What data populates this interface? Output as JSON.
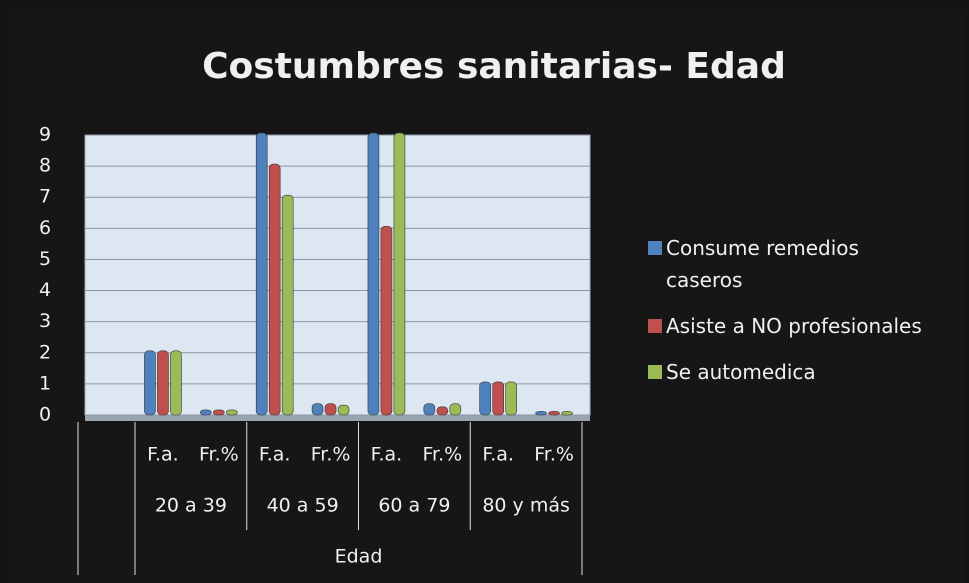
{
  "chart_data": {
    "type": "bar",
    "title": "Costumbres sanitarias- Edad",
    "x_label": "Edad",
    "groups": [
      "20 a 39",
      "40 a 59",
      "60 a 79",
      "80 y más"
    ],
    "categories": [
      "F.a.",
      "Fr.%",
      "F.a.",
      "Fr.%",
      "F.a.",
      "Fr.%",
      "F.a.",
      "Fr.%"
    ],
    "series": [
      {
        "name": "Consume remedios caseros",
        "color": "#4f81bd",
        "values": [
          2,
          0.1,
          9,
          0.3,
          9,
          0.3,
          1,
          0.05
        ]
      },
      {
        "name": "Asiste a NO profesionales",
        "color": "#c0504d",
        "values": [
          2,
          0.1,
          8,
          0.3,
          6,
          0.2,
          1,
          0.05
        ]
      },
      {
        "name": "Se automedica",
        "color": "#9bbb59",
        "values": [
          2,
          0.1,
          7,
          0.25,
          9,
          0.3,
          1,
          0.05
        ]
      }
    ],
    "ylim": [
      0,
      9
    ],
    "yticks": [
      0,
      1,
      2,
      3,
      4,
      5,
      6,
      7,
      8,
      9
    ],
    "grid": true,
    "legend": "right"
  }
}
